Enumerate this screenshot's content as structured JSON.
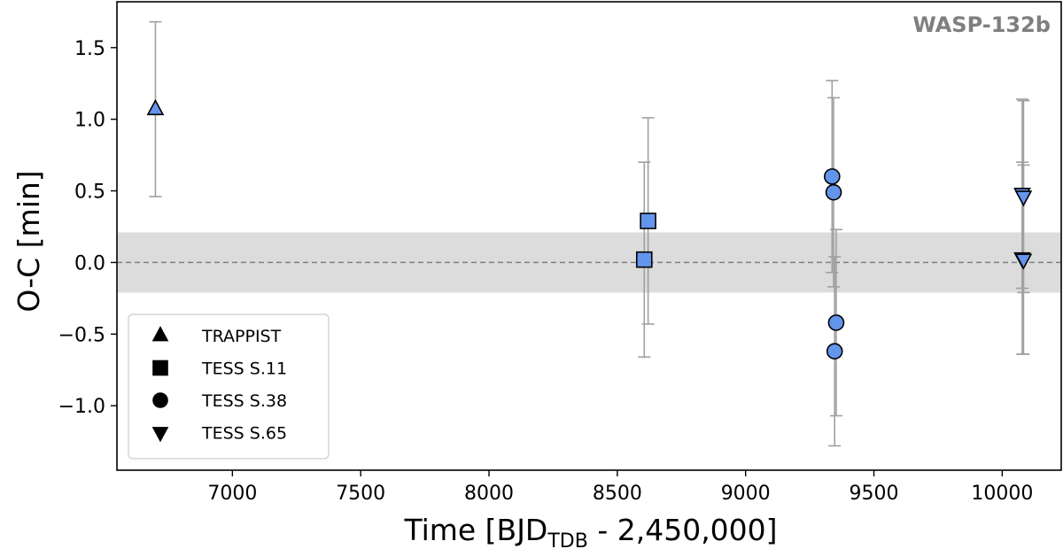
{
  "chart_data": {
    "type": "scatter",
    "title": "",
    "annotation": "WASP-132b",
    "xlabel_main": "Time [BJD",
    "xlabel_sub": "TDB",
    "xlabel_tail": " - 2,450,000]",
    "ylabel": "O-C [min]",
    "xlim": [
      6550,
      10230
    ],
    "ylim": [
      -1.45,
      1.82
    ],
    "xticks": [
      7000,
      7500,
      8000,
      8500,
      9000,
      9500,
      10000
    ],
    "xtick_labels": [
      "7000",
      "7500",
      "8000",
      "8500",
      "9000",
      "9500",
      "10000"
    ],
    "yticks": [
      -1.0,
      -0.5,
      0.0,
      0.5,
      1.0,
      1.5
    ],
    "ytick_labels": [
      "−1.0",
      "−0.5",
      "0.0",
      "0.5",
      "1.0",
      "1.5"
    ],
    "band": {
      "ymin": -0.21,
      "ymax": 0.21,
      "color": "#dcdcdc"
    },
    "zero_line": {
      "y": 0.0,
      "style": "dashed",
      "color": "#808080"
    },
    "marker_color": "#6495ed",
    "errorbar_color": "#a0a0a0",
    "series": [
      {
        "name": "TRAPPIST",
        "marker": "triangle-up",
        "points": [
          {
            "x": 6700,
            "y": 1.07,
            "err": 0.61
          }
        ]
      },
      {
        "name": "TESS S.11",
        "marker": "square",
        "points": [
          {
            "x": 8605,
            "y": 0.02,
            "err": 0.68
          },
          {
            "x": 8620,
            "y": 0.29,
            "err": 0.72
          }
        ]
      },
      {
        "name": "TESS S.38",
        "marker": "circle",
        "points": [
          {
            "x": 9337,
            "y": 0.6,
            "err": 0.67
          },
          {
            "x": 9343,
            "y": 0.49,
            "err": 0.66
          },
          {
            "x": 9353,
            "y": -0.42,
            "err": 0.65
          },
          {
            "x": 9347,
            "y": -0.62,
            "err": 0.66
          }
        ]
      },
      {
        "name": "TESS S.65",
        "marker": "triangle-down",
        "points": [
          {
            "x": 10078,
            "y": 0.48,
            "err": 0.66
          },
          {
            "x": 10083,
            "y": 0.46,
            "err": 0.67
          },
          {
            "x": 10078,
            "y": 0.03,
            "err": 0.67
          },
          {
            "x": 10083,
            "y": 0.02,
            "err": 0.66
          }
        ]
      }
    ],
    "legend": {
      "position": "lower-left",
      "entries": [
        "TRAPPIST",
        "TESS S.11",
        "TESS S.38",
        "TESS S.65"
      ]
    }
  }
}
